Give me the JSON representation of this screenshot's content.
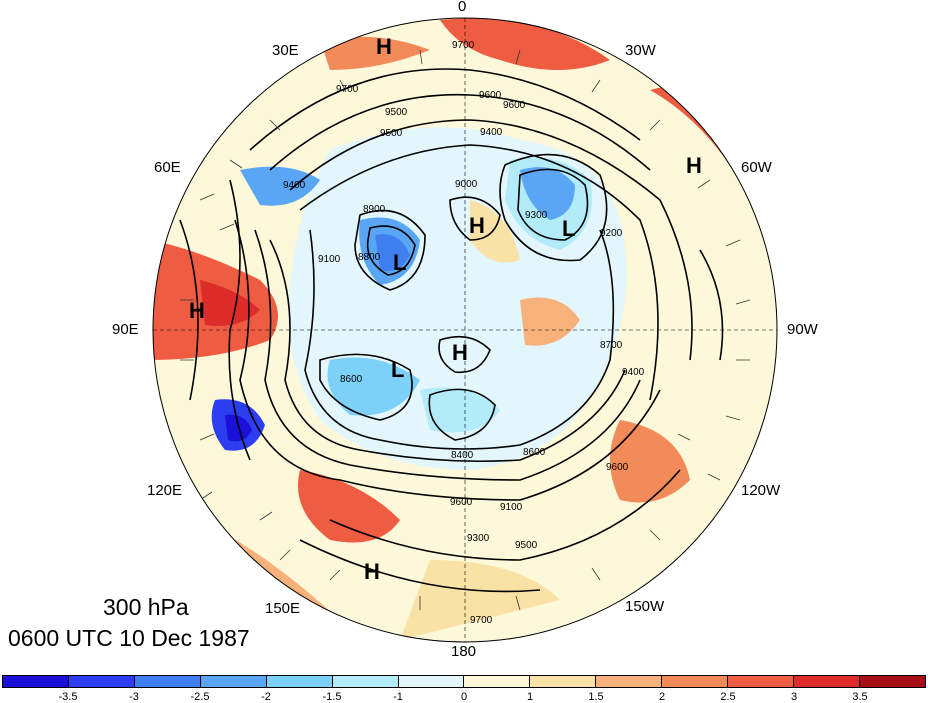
{
  "map": {
    "level_label": "300 hPa",
    "time_label": "0600 UTC 10 Dec 1987",
    "longitude_labels": [
      {
        "id": "lon-0",
        "text": "0"
      },
      {
        "id": "lon-30w",
        "text": "30W"
      },
      {
        "id": "lon-60w",
        "text": "60W"
      },
      {
        "id": "lon-90w",
        "text": "90W"
      },
      {
        "id": "lon-120w",
        "text": "120W"
      },
      {
        "id": "lon-150w",
        "text": "150W"
      },
      {
        "id": "lon-180",
        "text": "180"
      },
      {
        "id": "lon-150e",
        "text": "150E"
      },
      {
        "id": "lon-120e",
        "text": "120E"
      },
      {
        "id": "lon-90e",
        "text": "90E"
      },
      {
        "id": "lon-60e",
        "text": "60E"
      },
      {
        "id": "lon-30e",
        "text": "30E"
      }
    ],
    "centers": [
      {
        "type": "H"
      },
      {
        "type": "H"
      },
      {
        "type": "H"
      },
      {
        "type": "H"
      },
      {
        "type": "H"
      },
      {
        "type": "L"
      },
      {
        "type": "L"
      },
      {
        "type": "L"
      },
      {
        "type": "H"
      }
    ],
    "contour_labels": [
      "9700",
      "9600",
      "9500",
      "9400",
      "9700",
      "9600",
      "9500",
      "9400",
      "9300",
      "9200",
      "9100",
      "9000",
      "8900",
      "8800",
      "8700",
      "8600",
      "9600",
      "9100",
      "9300",
      "9500",
      "9700",
      "9400",
      "9600",
      "8600",
      "8400"
    ],
    "colors": {
      "positive_strong": "#a50f15",
      "positive": "#ef3b2c",
      "negative": "#2166f0",
      "negative_strong": "#0000cc",
      "contour": "#000000"
    }
  },
  "colorbar": {
    "colors": [
      "#1a10d8",
      "#2c3ef0",
      "#3f7ff0",
      "#5aa6f5",
      "#7dd0f8",
      "#b2ebfa",
      "#e3f6fb",
      "#fdf8da",
      "#fae2a6",
      "#f6b27a",
      "#f38a5a",
      "#ee5c42",
      "#dd2c2a",
      "#a50f15"
    ],
    "ticks": [
      "-3.5",
      "-3",
      "-2.5",
      "-2",
      "-1.5",
      "-1",
      "0",
      "1",
      "1.5",
      "2",
      "2.5",
      "3",
      "3.5"
    ]
  }
}
